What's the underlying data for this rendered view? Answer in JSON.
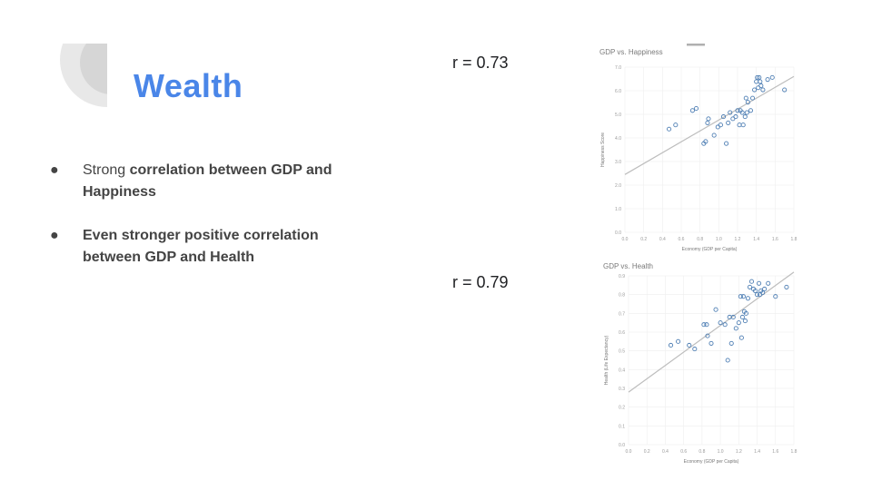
{
  "slide": {
    "title": "Wealth",
    "bullet1": {
      "normal": "Strong ",
      "bold": "correlation between GDP and Happiness"
    },
    "bullet2": {
      "bold": "Even stronger positive correlation between GDP and Health"
    },
    "r_happiness": "r = 0.73",
    "r_health": "r = 0.79"
  },
  "colors": {
    "title": "#4a86e8",
    "points": "#4f7fb4",
    "trendline": "#bdbdbd"
  },
  "chart_data": [
    {
      "type": "scatter",
      "title": "GDP vs. Happiness",
      "xlabel": "Economy (GDP per Capita)",
      "ylabel": "Happiness Score",
      "xlim": [
        0,
        1.8
      ],
      "ylim": [
        0,
        8
      ],
      "xticks": [
        "0.0",
        "0.2",
        "0.4",
        "0.6",
        "0.8",
        "1.0",
        "1.2",
        "1.4",
        "1.6",
        "1.8"
      ],
      "yticks": [
        "0.0",
        "1.0",
        "2.0",
        "3.0",
        "4.0",
        "5.0",
        "6.0",
        "7.0"
      ],
      "grid": true,
      "trendline": {
        "x": [
          0,
          1.8
        ],
        "y": [
          2.8,
          7.55
        ]
      },
      "points": [
        [
          0.47,
          5.0
        ],
        [
          0.54,
          5.2
        ],
        [
          0.72,
          5.9
        ],
        [
          0.76,
          6.0
        ],
        [
          0.84,
          4.3
        ],
        [
          0.86,
          4.4
        ],
        [
          0.88,
          5.3
        ],
        [
          0.89,
          5.5
        ],
        [
          0.95,
          4.7
        ],
        [
          0.99,
          5.1
        ],
        [
          1.02,
          5.2
        ],
        [
          1.05,
          5.6
        ],
        [
          1.08,
          4.3
        ],
        [
          1.1,
          5.3
        ],
        [
          1.12,
          5.8
        ],
        [
          1.15,
          5.5
        ],
        [
          1.18,
          5.6
        ],
        [
          1.2,
          5.9
        ],
        [
          1.22,
          5.2
        ],
        [
          1.23,
          5.9
        ],
        [
          1.25,
          5.8
        ],
        [
          1.26,
          5.2
        ],
        [
          1.28,
          5.6
        ],
        [
          1.29,
          6.5
        ],
        [
          1.3,
          5.8
        ],
        [
          1.31,
          6.3
        ],
        [
          1.34,
          5.9
        ],
        [
          1.36,
          6.5
        ],
        [
          1.38,
          6.9
        ],
        [
          1.4,
          7.3
        ],
        [
          1.41,
          7.5
        ],
        [
          1.42,
          7.0
        ],
        [
          1.43,
          7.5
        ],
        [
          1.44,
          7.3
        ],
        [
          1.45,
          7.1
        ],
        [
          1.47,
          6.9
        ],
        [
          1.52,
          7.4
        ],
        [
          1.57,
          7.5
        ],
        [
          1.7,
          6.9
        ]
      ]
    },
    {
      "type": "scatter",
      "title": "GDP vs. Health",
      "xlabel": "Economy (GDP per Capita)",
      "ylabel": "Health (Life Expectancy)",
      "xlim": [
        0,
        1.8
      ],
      "ylim": [
        0,
        0.9
      ],
      "xticks": [
        "0.0",
        "0.2",
        "0.4",
        "0.6",
        "0.8",
        "1.0",
        "1.2",
        "1.4",
        "1.6",
        "1.8"
      ],
      "yticks": [
        "0.0",
        "0.1",
        "0.2",
        "0.3",
        "0.4",
        "0.5",
        "0.6",
        "0.7",
        "0.8",
        "0.9"
      ],
      "grid": true,
      "trendline": {
        "x": [
          0,
          1.8
        ],
        "y": [
          0.28,
          0.92
        ]
      },
      "points": [
        [
          0.46,
          0.53
        ],
        [
          0.54,
          0.55
        ],
        [
          0.66,
          0.53
        ],
        [
          0.72,
          0.51
        ],
        [
          0.82,
          0.64
        ],
        [
          0.85,
          0.64
        ],
        [
          0.86,
          0.58
        ],
        [
          0.9,
          0.54
        ],
        [
          0.95,
          0.72
        ],
        [
          1.0,
          0.65
        ],
        [
          1.05,
          0.64
        ],
        [
          1.08,
          0.45
        ],
        [
          1.1,
          0.68
        ],
        [
          1.12,
          0.54
        ],
        [
          1.14,
          0.68
        ],
        [
          1.17,
          0.62
        ],
        [
          1.2,
          0.65
        ],
        [
          1.22,
          0.79
        ],
        [
          1.23,
          0.57
        ],
        [
          1.24,
          0.68
        ],
        [
          1.25,
          0.79
        ],
        [
          1.26,
          0.71
        ],
        [
          1.27,
          0.66
        ],
        [
          1.28,
          0.7
        ],
        [
          1.3,
          0.78
        ],
        [
          1.32,
          0.84
        ],
        [
          1.34,
          0.87
        ],
        [
          1.36,
          0.83
        ],
        [
          1.38,
          0.82
        ],
        [
          1.4,
          0.8
        ],
        [
          1.42,
          0.86
        ],
        [
          1.43,
          0.8
        ],
        [
          1.44,
          0.82
        ],
        [
          1.46,
          0.81
        ],
        [
          1.48,
          0.83
        ],
        [
          1.52,
          0.86
        ],
        [
          1.6,
          0.79
        ],
        [
          1.72,
          0.84
        ]
      ]
    }
  ]
}
